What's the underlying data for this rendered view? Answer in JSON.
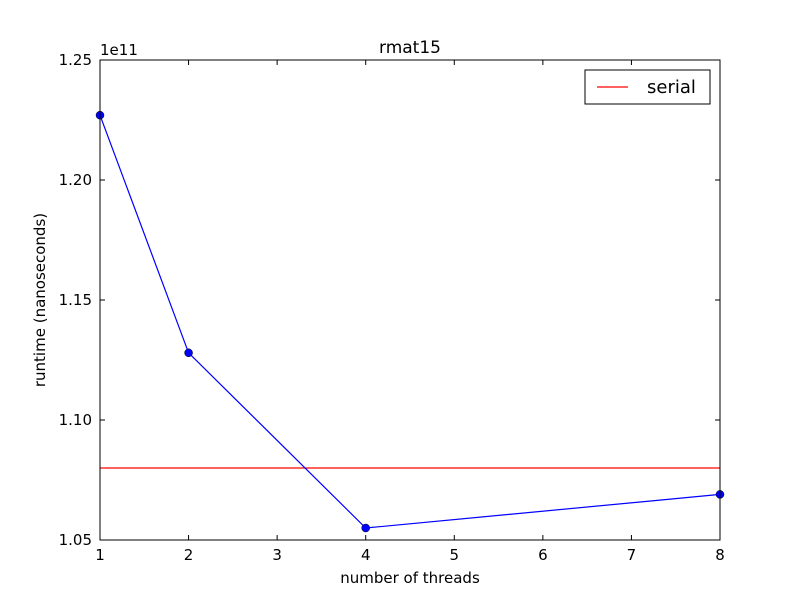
{
  "chart_data": {
    "type": "line",
    "title": "rmat15",
    "xlabel": "number of threads",
    "ylabel": "runtime (nanoseconds)",
    "y_offset_label": "1e11",
    "x_ticks": [
      1,
      2,
      3,
      4,
      5,
      6,
      7,
      8
    ],
    "y_ticks": [
      1.05,
      1.1,
      1.15,
      1.2,
      1.25
    ],
    "y_tick_labels": [
      "1.05",
      "1.10",
      "1.15",
      "1.20",
      "1.25"
    ],
    "xlim": [
      1,
      8
    ],
    "ylim": [
      1.05,
      1.25
    ],
    "grid": false,
    "legend_position": "top-right",
    "series": [
      {
        "color": "#0000ff",
        "marker": "circle",
        "x": [
          1,
          2,
          4,
          8
        ],
        "y": [
          1.227,
          1.128,
          1.055,
          1.069
        ]
      }
    ],
    "reference_lines": [
      {
        "name": "serial",
        "color": "#ff0000",
        "y": 1.08
      }
    ]
  }
}
